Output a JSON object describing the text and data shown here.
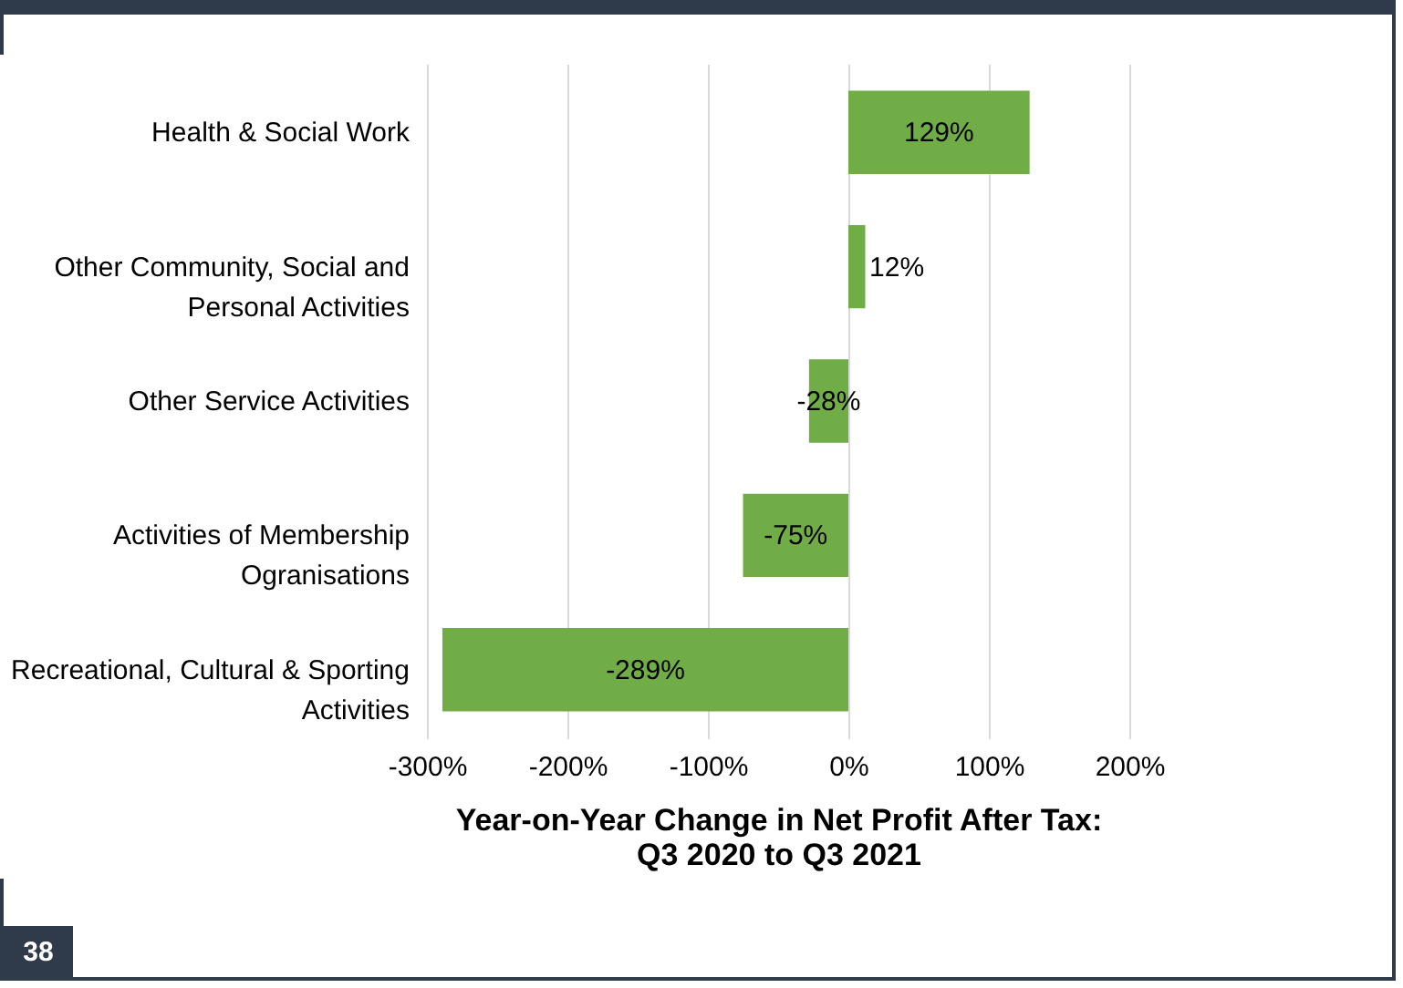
{
  "chart_data": {
    "type": "bar",
    "orientation": "horizontal",
    "xlabel": "Year-on-Year Change in Net Profit After Tax: Q3 2020 to Q3 2021",
    "categories": [
      "Health & Social Work",
      "Other Community, Social and Personal Activities",
      "Other Service Activities",
      "Activities of Membership Ogranisations",
      "Recreational, Cultural & Sporting Activities"
    ],
    "values": [
      129,
      12,
      -28,
      -75,
      -289
    ],
    "color": "#70ad47",
    "data_labels": true,
    "value_labels": [
      "129%",
      "12%",
      "-28%",
      "-75%",
      "-289%"
    ],
    "xlim": [
      -300,
      200
    ],
    "xticks": [
      {
        "value": -300,
        "label": "-300%"
      },
      {
        "value": -200,
        "label": "-200%"
      },
      {
        "value": -100,
        "label": "-100%"
      },
      {
        "value": 0,
        "label": "0%"
      },
      {
        "value": 100,
        "label": "100%"
      },
      {
        "value": 200,
        "label": "200%"
      }
    ],
    "grid": "x",
    "annotations": [
      "38"
    ]
  }
}
